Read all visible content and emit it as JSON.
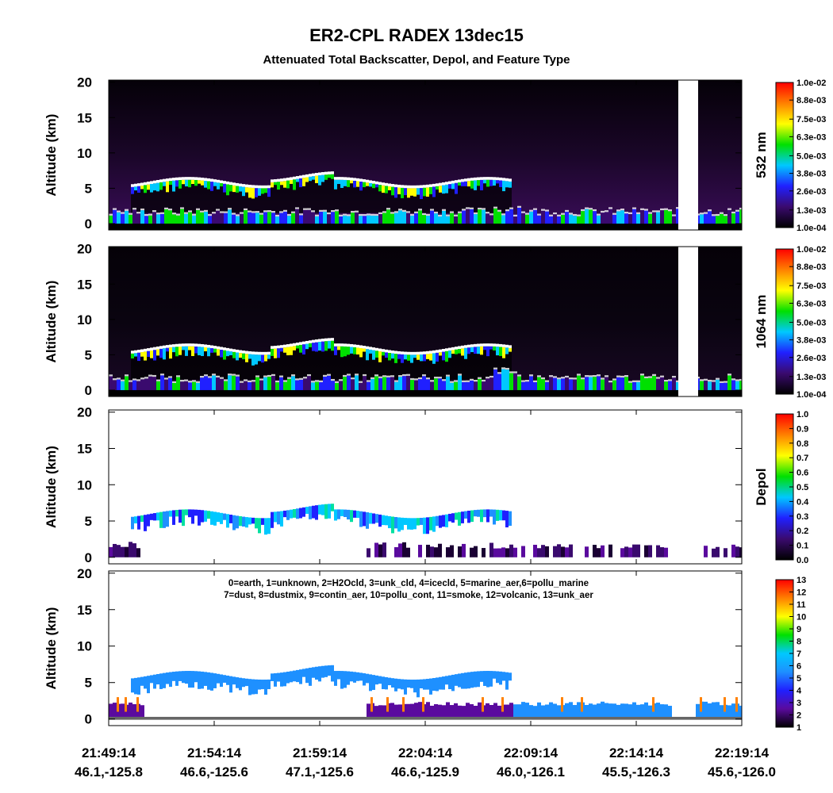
{
  "title": "ER2-CPL RADEX 13dec15",
  "subtitle": "Attenuated Total Backscatter, Depol, and Feature Type",
  "x_tick_labels": [
    "21:49:14",
    "21:54:14",
    "21:59:14",
    "22:04:14",
    "22:09:14",
    "22:14:14",
    "22:19:14"
  ],
  "x_tick_coords": [
    "46.1,-125.8",
    "46.6,-125.6",
    "47.1,-125.6",
    "46.6,-125.9",
    "46.0,-126.1",
    "45.5,-126.3",
    "45.6,-126.0"
  ],
  "chart_data": [
    {
      "type": "heatmap",
      "ylabel": "Altitude (km)",
      "ylim": [
        -0.9,
        20.3
      ],
      "yticks": [
        0,
        5,
        10,
        15,
        20
      ],
      "colorbar_label": "532 nm",
      "clim": [
        0.0001,
        0.01
      ],
      "colors": [
        "#000000",
        "#3a0a6e",
        "#2020ff",
        "#00c8ff",
        "#00e000",
        "#ffff00",
        "#ff8000",
        "#ff0000"
      ],
      "cticks": [
        {
          "value": 0.01,
          "label": "1.0e-02"
        },
        {
          "value": 0.0088,
          "label": "8.8e-03"
        },
        {
          "value": 0.0075,
          "label": "7.5e-03"
        },
        {
          "value": 0.0063,
          "label": "6.3e-03"
        },
        {
          "value": 0.005,
          "label": "5.0e-03"
        },
        {
          "value": 0.0038,
          "label": "3.8e-03"
        },
        {
          "value": 0.0026,
          "label": "2.6e-03"
        },
        {
          "value": 0.0013,
          "label": "1.3e-03"
        },
        {
          "value": 0.0001,
          "label": "1.0e-04"
        }
      ]
    },
    {
      "type": "heatmap",
      "ylabel": "Altitude (km)",
      "ylim": [
        -0.9,
        20.3
      ],
      "yticks": [
        0,
        5,
        10,
        15,
        20
      ],
      "colorbar_label": "1064 nm",
      "clim": [
        0.0001,
        0.01
      ],
      "colors": [
        "#000000",
        "#3a0a6e",
        "#2020ff",
        "#00c8ff",
        "#00e000",
        "#ffff00",
        "#ff8000",
        "#ff0000"
      ],
      "cticks": [
        {
          "value": 0.01,
          "label": "1.0e-02"
        },
        {
          "value": 0.0088,
          "label": "8.8e-03"
        },
        {
          "value": 0.0075,
          "label": "7.5e-03"
        },
        {
          "value": 0.0063,
          "label": "6.3e-03"
        },
        {
          "value": 0.005,
          "label": "5.0e-03"
        },
        {
          "value": 0.0038,
          "label": "3.8e-03"
        },
        {
          "value": 0.0026,
          "label": "2.6e-03"
        },
        {
          "value": 0.0013,
          "label": "1.3e-03"
        },
        {
          "value": 0.0001,
          "label": "1.0e-04"
        }
      ]
    },
    {
      "type": "heatmap",
      "ylabel": "Altitude (km)",
      "ylim": [
        -0.9,
        20.3
      ],
      "yticks": [
        0,
        5,
        10,
        15,
        20
      ],
      "colorbar_label": "Depol",
      "clim": [
        0,
        1
      ],
      "colors": [
        "#000000",
        "#3a0a6e",
        "#2020ff",
        "#00c8ff",
        "#00e000",
        "#ffff00",
        "#ff8000",
        "#ff0000"
      ],
      "cticks": [
        {
          "value": 1,
          "label": "1.0"
        },
        0.9,
        0.8,
        0.7,
        0.6,
        0.5,
        0.4,
        0.3,
        0.2,
        0.1,
        {
          "value": 0,
          "label": "0.0"
        }
      ]
    },
    {
      "type": "heatmap",
      "ylabel": "Altitude (km)",
      "ylim": [
        -0.9,
        20.3
      ],
      "yticks": [
        0,
        5,
        10,
        15,
        20
      ],
      "clim": [
        1,
        13
      ],
      "colors": [
        "#000000",
        "#5a0a9e",
        "#2020ff",
        "#1e90ff",
        "#00c8ff",
        "#00e000",
        "#ffff00",
        "#ff8000",
        "#ff0000"
      ],
      "cticks": [
        13,
        12,
        11,
        10,
        9,
        8,
        7,
        6,
        5,
        4,
        3,
        2,
        1
      ],
      "legend": [
        "0=earth, 1=unknown, 2=H2Ocld, 3=unk_cld, 4=icecld, 5=marine_aer,6=pollu_marine",
        "7=dust, 8=dustmix, 9=contin_aer, 10=pollu_cont, 11=smoke, 12=volcanic, 13=unk_aer"
      ]
    }
  ]
}
